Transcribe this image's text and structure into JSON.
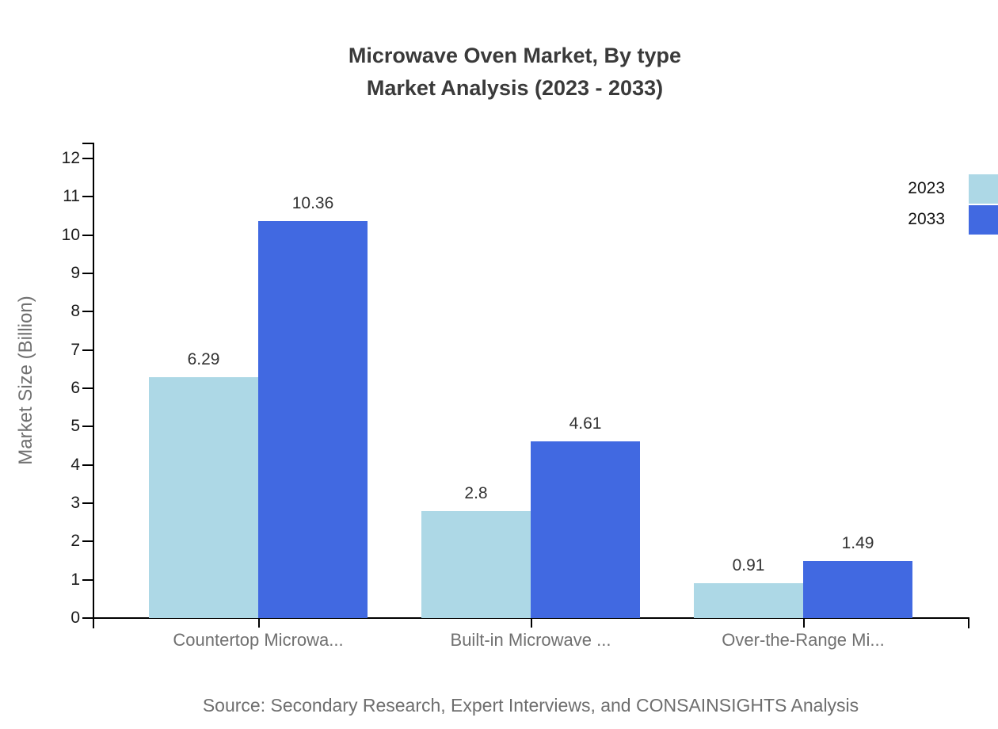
{
  "title": {
    "line1": "Microwave Oven Market, By type",
    "line2": "Market Analysis (2023 - 2033)"
  },
  "source": "Source: Secondary Research, Expert Interviews, and CONSAINSIGHTS Analysis",
  "chart_data": {
    "type": "bar",
    "title": "Microwave Oven Market, By type Market Analysis (2023 - 2033)",
    "categories": [
      "Countertop Microwa...",
      "Built-in Microwave ...",
      "Over-the-Range Mi..."
    ],
    "series": [
      {
        "name": "2023",
        "color": "#ADD8E6",
        "values": [
          6.29,
          2.8,
          0.91
        ],
        "labels": [
          "6.29",
          "2.8",
          "0.91"
        ]
      },
      {
        "name": "2033",
        "color": "#4169E1",
        "values": [
          10.36,
          4.61,
          1.49
        ],
        "labels": [
          "10.36",
          "4.61",
          "1.49"
        ]
      }
    ],
    "xlabel": "",
    "ylabel": "Market Size (Billion)",
    "ylim": [
      0,
      12
    ],
    "yticks": [
      0,
      1,
      2,
      3,
      4,
      5,
      6,
      7,
      8,
      9,
      10,
      11,
      12
    ],
    "grid": false,
    "legend_position": "top-right",
    "legend_labels": [
      "2023",
      "2033"
    ]
  },
  "colors": {
    "series_2023": "#ADD8E6",
    "series_2033": "#4169E1",
    "axis": "#000000",
    "title_text": "#3a3a3a",
    "muted_text": "#707070",
    "tick_text": "#1a1a1a"
  }
}
